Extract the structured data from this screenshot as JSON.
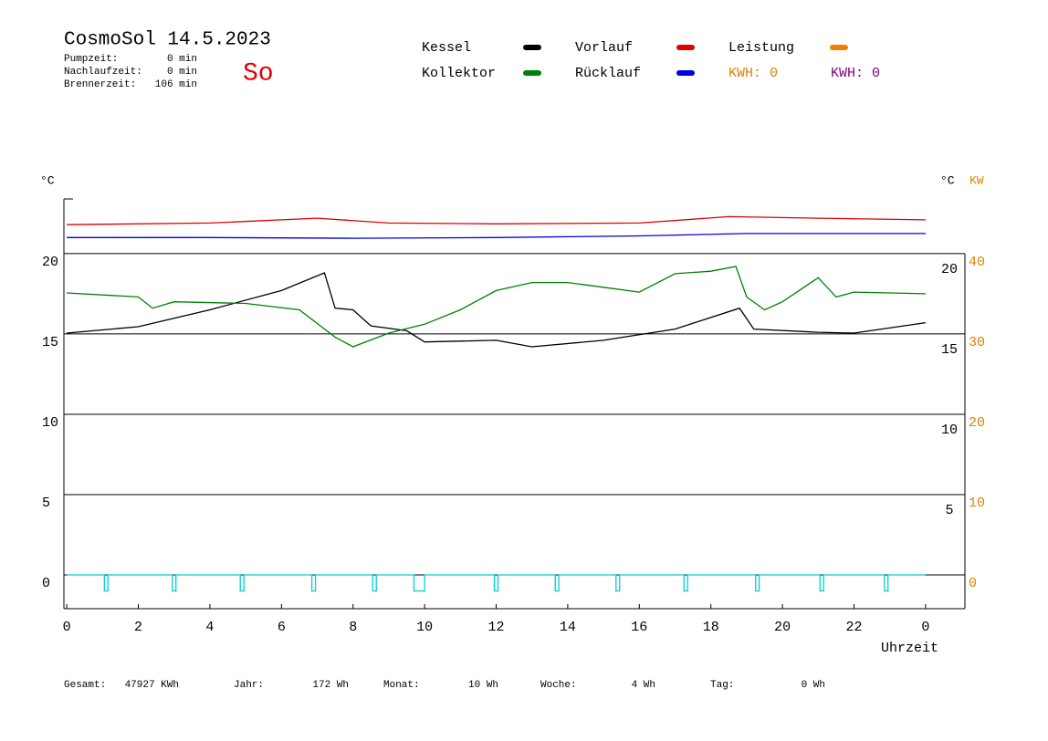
{
  "chart_data": {
    "type": "line",
    "title": "CosmoSol 14.5.2023",
    "day": "So",
    "stats": [
      {
        "label": "Pumpzeit:",
        "value": "0 min"
      },
      {
        "label": "Nachlaufzeit:",
        "value": "0 min"
      },
      {
        "label": "Brennerzeit:",
        "value": "106 min"
      }
    ],
    "ylabel": "°C",
    "y2label_c": "°C",
    "y2label": "KW",
    "xlabel": "Uhrzeit",
    "xlim": [
      -0.08,
      25.1
    ],
    "xticks": [
      0,
      2,
      4,
      6,
      8,
      10,
      12,
      14,
      16,
      18,
      20,
      22,
      {
        "value": 24,
        "label": "0"
      }
    ],
    "ylim": [
      -2.1,
      23.4
    ],
    "yticks": [
      0,
      5,
      10,
      15,
      20
    ],
    "y_right_ticks": [
      5,
      10,
      15,
      20
    ],
    "y2lim": [
      -4.2,
      46.8
    ],
    "y2ticks": [
      0,
      10,
      20,
      30,
      40
    ],
    "grid": true,
    "series": [
      {
        "name": "Kessel",
        "color": "#000000",
        "x": [
          0,
          2,
          4,
          6,
          7.2,
          7.5,
          8,
          8.5,
          9.5,
          10,
          12,
          13,
          15,
          17,
          18.8,
          19.2,
          21,
          22,
          24
        ],
        "values": [
          15.05,
          15.45,
          16.5,
          17.7,
          18.8,
          16.6,
          16.5,
          15.5,
          15.2,
          14.5,
          14.6,
          14.2,
          14.6,
          15.3,
          16.6,
          15.3,
          15.1,
          15.05,
          15.7
        ]
      },
      {
        "name": "Kollektor",
        "color": "#008000",
        "x": [
          0,
          2,
          2.4,
          3,
          5,
          6.5,
          7.5,
          8,
          9,
          10,
          11,
          12,
          13,
          14,
          15,
          16,
          17,
          18,
          18.7,
          19,
          19.5,
          20,
          21,
          21.5,
          22,
          24
        ],
        "values": [
          17.55,
          17.3,
          16.6,
          17.0,
          16.9,
          16.5,
          14.8,
          14.2,
          15.05,
          15.6,
          16.5,
          17.7,
          18.2,
          18.2,
          17.9,
          17.6,
          18.75,
          18.9,
          19.2,
          17.3,
          16.5,
          17.0,
          18.5,
          17.3,
          17.6,
          17.5
        ]
      },
      {
        "name": "Vorlauf",
        "color": "#e00000",
        "x": [
          0,
          4,
          7,
          9,
          12,
          16,
          18.5,
          21,
          24
        ],
        "values": [
          21.8,
          21.9,
          22.2,
          21.9,
          21.85,
          21.9,
          22.3,
          22.2,
          22.1
        ]
      },
      {
        "name": "Rücklauf",
        "color": "#0000e0",
        "x": [
          0,
          4,
          8,
          12,
          16,
          19,
          24
        ],
        "values": [
          21.0,
          21.0,
          20.95,
          21.0,
          21.1,
          21.25,
          21.25
        ]
      },
      {
        "name": "Leistung",
        "color": "#f08000",
        "x": [],
        "values": []
      },
      {
        "color": "#00d0d0",
        "x": [
          0,
          1.05,
          1.05,
          1.15,
          1.15,
          2.95,
          2.95,
          3.05,
          3.05,
          4.85,
          4.85,
          4.95,
          4.95,
          6.85,
          6.85,
          6.95,
          6.95,
          8.55,
          8.55,
          8.65,
          8.65,
          9.7,
          9.7,
          10.0,
          10.0,
          11.95,
          11.95,
          12.05,
          12.05,
          13.65,
          13.65,
          13.75,
          13.75,
          15.35,
          15.35,
          15.45,
          15.45,
          17.25,
          17.25,
          17.35,
          17.35,
          19.25,
          19.25,
          19.35,
          19.35,
          21.05,
          21.05,
          21.15,
          21.15,
          22.85,
          22.85,
          22.95,
          22.95,
          24
        ],
        "values": [
          0,
          0,
          -1,
          -1,
          0,
          0,
          -1,
          -1,
          0,
          0,
          -1,
          -1,
          0,
          0,
          -1,
          -1,
          0,
          0,
          -1,
          -1,
          0,
          0,
          -1,
          -1,
          0,
          0,
          -1,
          -1,
          0,
          0,
          -1,
          -1,
          0,
          0,
          -1,
          -1,
          0,
          0,
          -1,
          -1,
          0,
          0,
          -1,
          -1,
          0,
          0,
          -1,
          -1,
          0,
          0,
          -1,
          -1,
          0,
          0
        ]
      }
    ],
    "kwh": [
      {
        "text": "KWH: 0",
        "color": "#e08000"
      },
      {
        "text": "KWH: 0",
        "color": "#800080"
      }
    ],
    "totals": [
      {
        "label": "Gesamt:",
        "value": "47927 KWh"
      },
      {
        "label": "Jahr:",
        "value": "172 Wh"
      },
      {
        "label": "Monat:",
        "value": "10 Wh"
      },
      {
        "label": "Woche:",
        "value": "4 Wh"
      },
      {
        "label": "Tag:",
        "value": "0 Wh"
      }
    ]
  }
}
